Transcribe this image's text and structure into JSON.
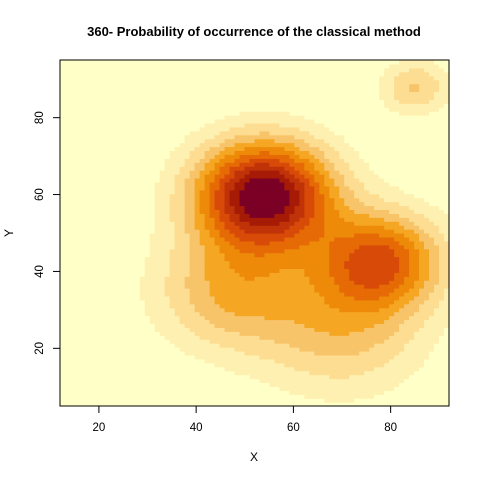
{
  "chart_data": {
    "type": "heatmap",
    "title": "360- Probability of occurrence of the classical method",
    "xlabel": "X",
    "ylabel": "Y",
    "xlim": [
      12,
      92
    ],
    "ylim": [
      5,
      95
    ],
    "xticks": [
      20,
      40,
      60,
      80
    ],
    "yticks": [
      20,
      40,
      60,
      80
    ],
    "palette": [
      "#FFFFC8",
      "#FEF0B0",
      "#FCDD92",
      "#F8C46A",
      "#F5A623",
      "#EE8A09",
      "#E66A05",
      "#D84A08",
      "#C03208",
      "#A61B06",
      "#7B0025"
    ],
    "peaks": [
      {
        "x": 54,
        "y": 60,
        "height": 1.0,
        "spread": 10
      },
      {
        "x": 78,
        "y": 43,
        "height": 0.62,
        "spread": 9
      },
      {
        "x": 85,
        "y": 88,
        "height": 0.28,
        "spread": 5
      },
      {
        "x": 47,
        "y": 35,
        "height": 0.35,
        "spread": 11
      },
      {
        "x": 70,
        "y": 25,
        "height": 0.3,
        "spread": 12
      }
    ]
  }
}
